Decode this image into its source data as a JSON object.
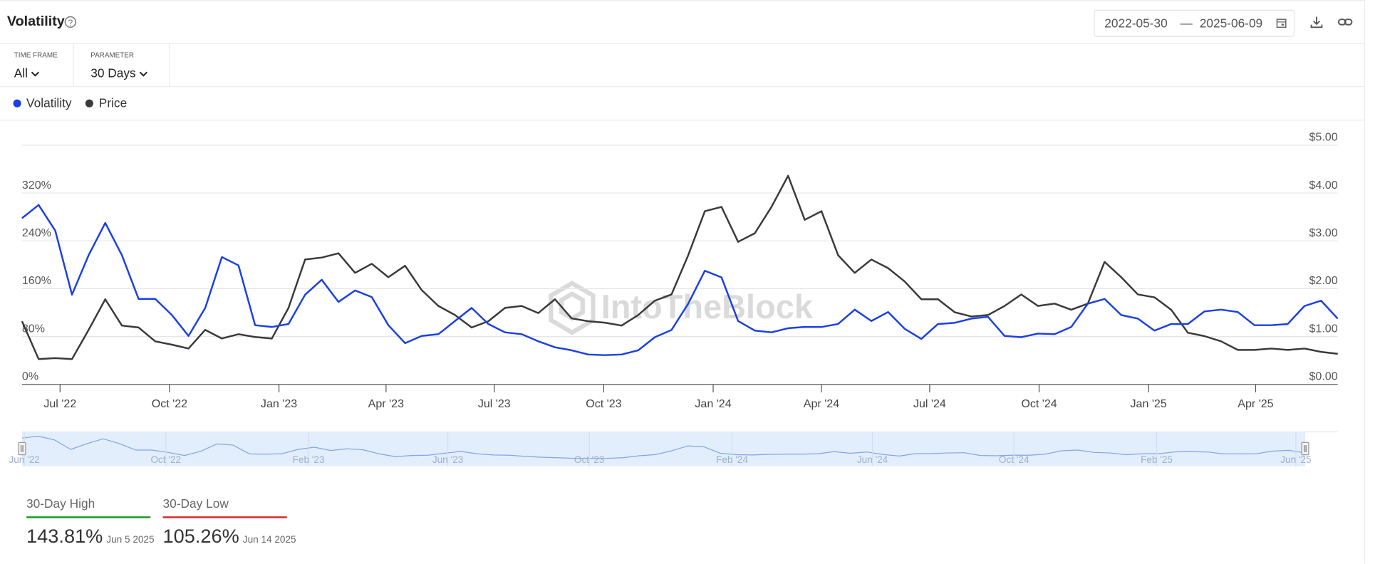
{
  "header": {
    "title": "Volatility",
    "date_from": "2022-05-30",
    "date_sep": "—",
    "date_to": "2025-06-09"
  },
  "controls": [
    {
      "label": "TIME FRAME",
      "value": "All"
    },
    {
      "label": "PARAMETER",
      "value": "30 Days"
    }
  ],
  "watermark": "IntoTheBlock",
  "chart_data": {
    "type": "line",
    "x": [
      "2022-05-30",
      "2022-06-13",
      "2022-06-27",
      "2022-07-11",
      "2022-07-25",
      "2022-08-08",
      "2022-08-22",
      "2022-09-05",
      "2022-09-19",
      "2022-10-03",
      "2022-10-17",
      "2022-10-31",
      "2022-11-14",
      "2022-11-28",
      "2022-12-12",
      "2022-12-26",
      "2023-01-09",
      "2023-01-23",
      "2023-02-06",
      "2023-02-20",
      "2023-03-06",
      "2023-03-20",
      "2023-04-03",
      "2023-04-17",
      "2023-05-01",
      "2023-05-15",
      "2023-05-29",
      "2023-06-12",
      "2023-06-26",
      "2023-07-10",
      "2023-07-24",
      "2023-08-07",
      "2023-08-21",
      "2023-09-04",
      "2023-09-18",
      "2023-10-02",
      "2023-10-16",
      "2023-10-30",
      "2023-11-13",
      "2023-11-27",
      "2023-12-11",
      "2023-12-25",
      "2024-01-08",
      "2024-01-22",
      "2024-02-05",
      "2024-02-19",
      "2024-03-04",
      "2024-03-18",
      "2024-04-01",
      "2024-04-15",
      "2024-04-29",
      "2024-05-13",
      "2024-05-27",
      "2024-06-10",
      "2024-06-24",
      "2024-07-08",
      "2024-07-22",
      "2024-08-05",
      "2024-08-19",
      "2024-09-02",
      "2024-09-16",
      "2024-09-30",
      "2024-10-14",
      "2024-10-28",
      "2024-11-11",
      "2024-11-25",
      "2024-12-09",
      "2024-12-23",
      "2025-01-06",
      "2025-01-20",
      "2025-02-03",
      "2025-02-17",
      "2025-03-03",
      "2025-03-17",
      "2025-03-31",
      "2025-04-14",
      "2025-04-28",
      "2025-05-12",
      "2025-05-26",
      "2025-06-09"
    ],
    "series": [
      {
        "name": "Volatility",
        "color": "#1b3fe6",
        "axis": "y",
        "values": [
          278,
          300,
          257,
          150,
          216,
          270,
          216,
          143,
          143,
          116,
          81,
          128,
          213,
          199,
          99,
          96,
          101,
          150,
          175,
          138,
          157,
          146,
          99,
          69,
          81,
          84,
          106,
          128,
          101,
          87,
          84,
          72,
          62,
          57,
          50,
          49,
          50,
          57,
          79,
          91,
          135,
          190,
          179,
          106,
          90,
          87,
          94,
          96,
          96,
          101,
          125,
          106,
          121,
          93,
          76,
          101,
          103,
          110,
          113,
          81,
          79,
          85,
          84,
          96,
          135,
          143,
          116,
          110,
          90,
          101,
          101,
          122,
          125,
          121,
          99,
          99,
          101,
          131,
          140,
          110
        ]
      },
      {
        "name": "Price",
        "color": "#3a3a3a",
        "axis": "y2",
        "values": [
          1.32,
          0.53,
          0.55,
          0.53,
          1.14,
          1.78,
          1.23,
          1.19,
          0.9,
          0.83,
          0.75,
          1.14,
          0.96,
          1.05,
          0.99,
          0.96,
          1.6,
          2.61,
          2.65,
          2.74,
          2.33,
          2.52,
          2.24,
          2.48,
          1.97,
          1.64,
          1.45,
          1.19,
          1.32,
          1.6,
          1.64,
          1.49,
          1.78,
          1.38,
          1.32,
          1.29,
          1.23,
          1.45,
          1.75,
          1.88,
          2.7,
          3.62,
          3.71,
          2.98,
          3.16,
          3.71,
          4.36,
          3.44,
          3.62,
          2.7,
          2.33,
          2.61,
          2.43,
          2.15,
          1.78,
          1.78,
          1.51,
          1.42,
          1.45,
          1.64,
          1.88,
          1.64,
          1.69,
          1.56,
          1.69,
          2.56,
          2.24,
          1.88,
          1.82,
          1.56,
          1.08,
          1.01,
          0.9,
          0.72,
          0.72,
          0.75,
          0.72,
          0.75,
          0.68,
          0.64
        ]
      }
    ],
    "xlim": [
      "2022-05-30",
      "2025-06-09"
    ],
    "xticks": [
      {
        "value": "2022-07-01",
        "label": "Jul '22"
      },
      {
        "value": "2022-10-01",
        "label": "Oct '22"
      },
      {
        "value": "2023-01-01",
        "label": "Jan '23"
      },
      {
        "value": "2023-04-01",
        "label": "Apr '23"
      },
      {
        "value": "2023-07-01",
        "label": "Jul '23"
      },
      {
        "value": "2023-10-01",
        "label": "Oct '23"
      },
      {
        "value": "2024-01-01",
        "label": "Jan '24"
      },
      {
        "value": "2024-04-01",
        "label": "Apr '24"
      },
      {
        "value": "2024-07-01",
        "label": "Jul '24"
      },
      {
        "value": "2024-10-01",
        "label": "Oct '24"
      },
      {
        "value": "2025-01-01",
        "label": "Jan '25"
      },
      {
        "value": "2025-04-01",
        "label": "Apr '25"
      }
    ],
    "ylim": [
      0,
      400
    ],
    "yticks": [
      {
        "value": 0,
        "label": "0%"
      },
      {
        "value": 80,
        "label": "80%"
      },
      {
        "value": 160,
        "label": "160%"
      },
      {
        "value": 240,
        "label": "240%"
      },
      {
        "value": 320,
        "label": "320%"
      }
    ],
    "y2lim": [
      0,
      5
    ],
    "y2ticks": [
      {
        "value": 0,
        "label": "$0.00"
      },
      {
        "value": 1,
        "label": "$1.00"
      },
      {
        "value": 2,
        "label": "$2.00"
      },
      {
        "value": 3,
        "label": "$3.00"
      },
      {
        "value": 4,
        "label": "$4.00"
      },
      {
        "value": 5,
        "label": "$5.00"
      }
    ],
    "grid": true,
    "legend": "top-left",
    "navigator_ticks": [
      {
        "value": "2022-06-01",
        "label": "Jun '22"
      },
      {
        "value": "2022-10-01",
        "label": "Oct '22"
      },
      {
        "value": "2023-02-01",
        "label": "Feb '23"
      },
      {
        "value": "2023-06-01",
        "label": "Jun '23"
      },
      {
        "value": "2023-10-01",
        "label": "Oct '23"
      },
      {
        "value": "2024-02-01",
        "label": "Feb '24"
      },
      {
        "value": "2024-06-01",
        "label": "Jun '24"
      },
      {
        "value": "2024-10-01",
        "label": "Oct '24"
      },
      {
        "value": "2025-02-01",
        "label": "Feb '25"
      },
      {
        "value": "2025-06-01",
        "label": "Jun '25"
      }
    ]
  },
  "stats": [
    {
      "label": "30-Day High",
      "value": "143.81%",
      "date": "Jun 5 2025",
      "color": "#1a9a2a"
    },
    {
      "label": "30-Day Low",
      "value": "105.26%",
      "date": "Jun 14 2025",
      "color": "#d62b2b"
    }
  ]
}
